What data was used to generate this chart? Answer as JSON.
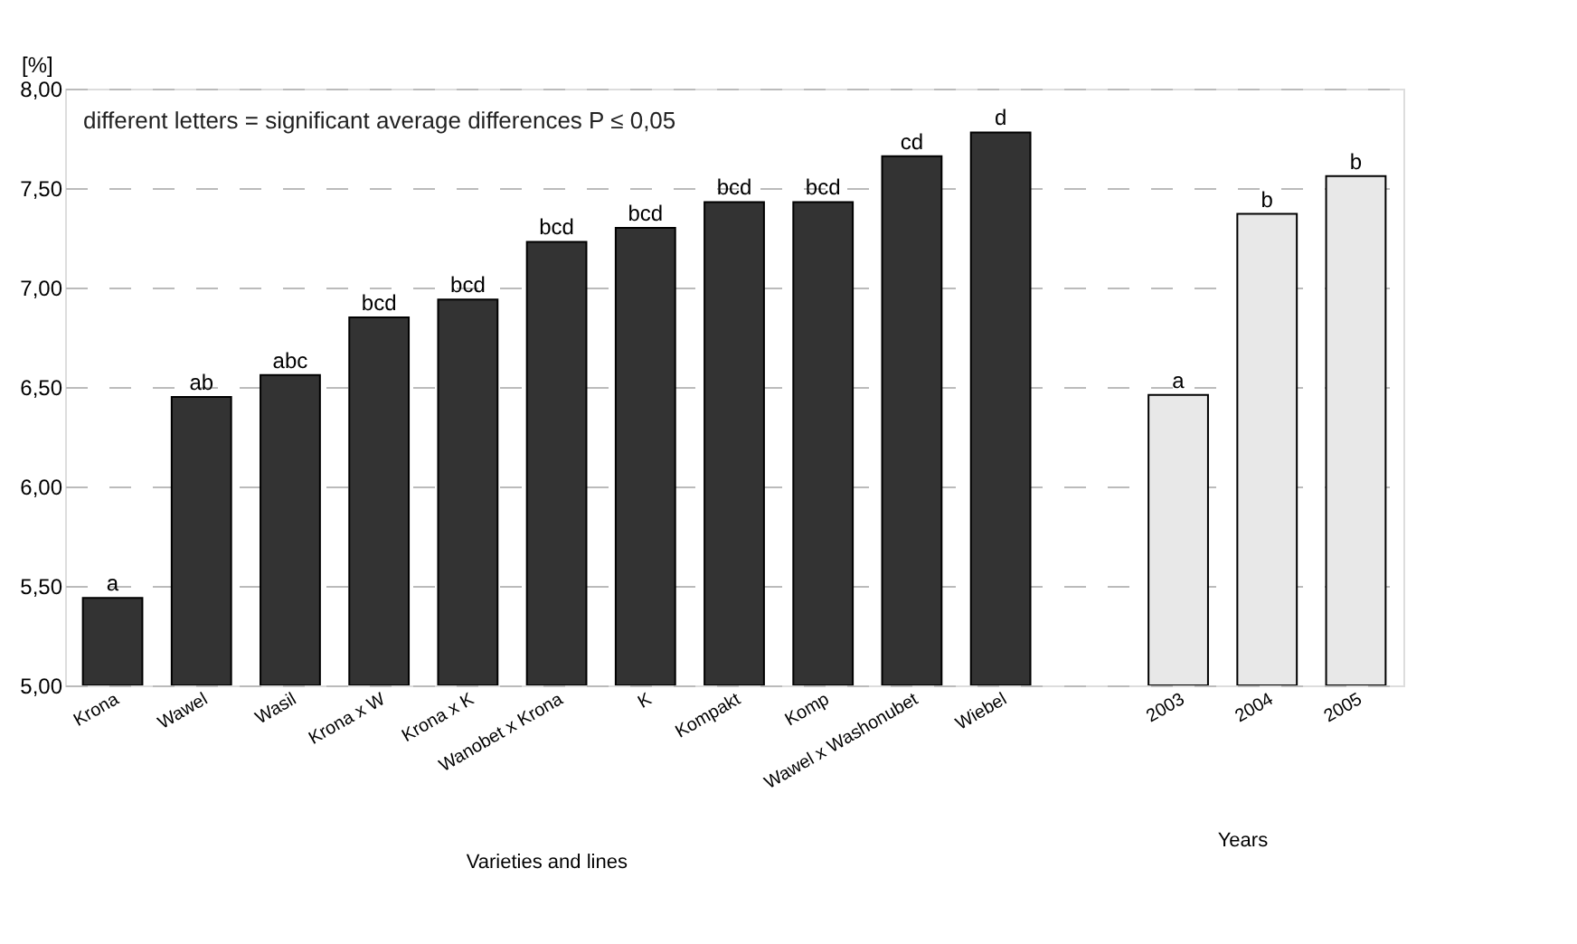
{
  "chart_data": {
    "type": "bar",
    "ylabel": "[%]",
    "xlabel": "Varieties and lines",
    "categories": [
      "Krona",
      "Wawel",
      "Wasil",
      "Krona x W",
      "Krona x K",
      "Wanobet x Krona",
      "K",
      "Kompakt",
      "Komp",
      "Wawel x Washonubet",
      "Wiebel",
      null,
      "2003",
      "2004",
      "2005"
    ],
    "series": [
      {
        "color": "#333333",
        "values": [
          5.44,
          6.45,
          6.56,
          6.85,
          6.94,
          7.23,
          7.3,
          7.43,
          7.43,
          7.66,
          7.78,
          null,
          null,
          null,
          null
        ],
        "value_labels": [
          "a",
          "ab",
          "abc",
          "bcd",
          "bcd",
          "bcd",
          "bcd",
          "bcd",
          "bcd",
          "cd",
          "d",
          null,
          null,
          null,
          null
        ]
      },
      {
        "color": "#e8e8e8",
        "values": [
          null,
          null,
          null,
          null,
          null,
          null,
          null,
          null,
          null,
          null,
          null,
          null,
          6.46,
          7.37,
          7.56
        ],
        "value_labels": [
          null,
          null,
          null,
          null,
          null,
          null,
          null,
          null,
          null,
          null,
          null,
          null,
          "a",
          "b",
          "b"
        ]
      }
    ],
    "ylim": [
      5.0,
      8.0
    ],
    "yticks": [
      {
        "value": 5.0,
        "label": "5,00"
      },
      {
        "value": 5.5,
        "label": "5,50"
      },
      {
        "value": 6.0,
        "label": "6,00"
      },
      {
        "value": 6.5,
        "label": "6,50"
      },
      {
        "value": 7.0,
        "label": "7,00"
      },
      {
        "value": 7.5,
        "label": "7,50"
      },
      {
        "value": 8.0,
        "label": "8,00"
      }
    ],
    "grid": "y",
    "legend": false,
    "annotations": [
      "different letters = significant average differences P ≤ 0,05",
      "Years"
    ]
  }
}
